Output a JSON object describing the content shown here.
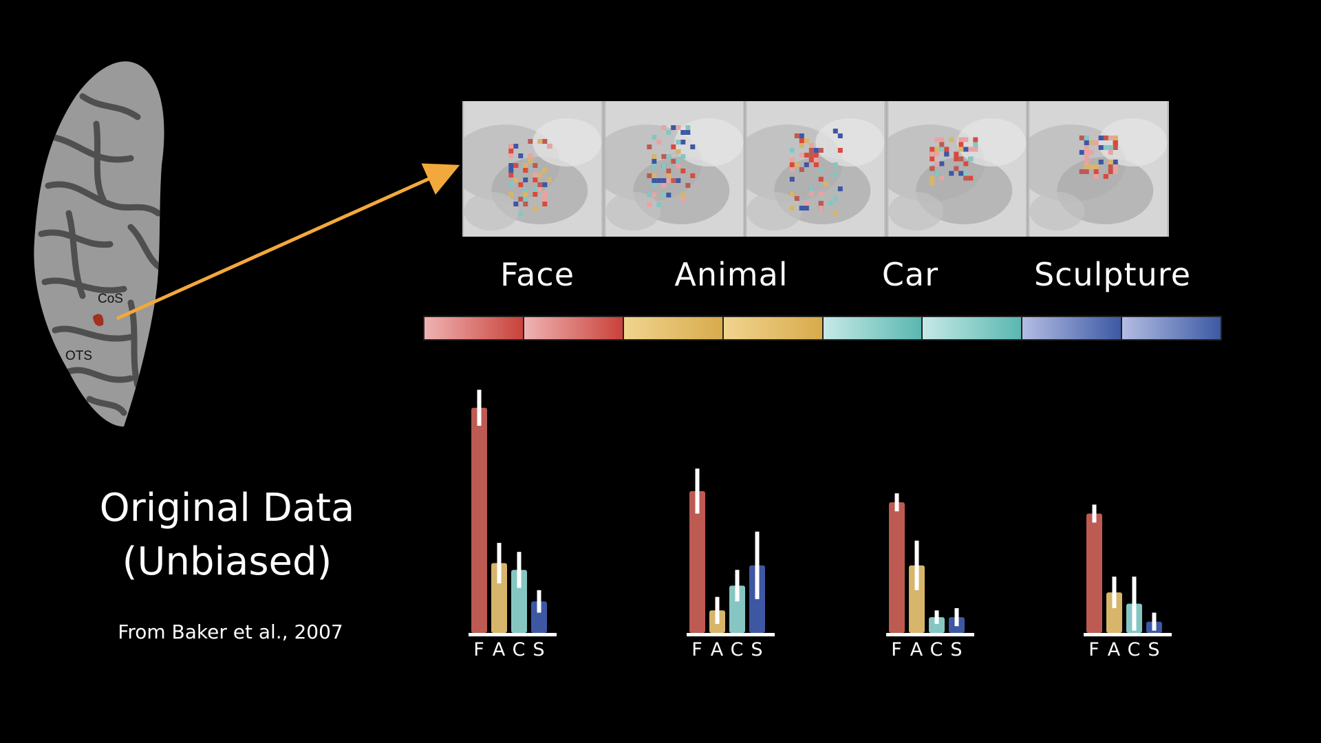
{
  "title": {
    "line1": "Original Data",
    "line2": "(Unbiased)"
  },
  "source": "From Baker et al., 2007",
  "brain": {
    "labels": {
      "cos": "CoS",
      "ots": "OTS"
    }
  },
  "categories": [
    "Face",
    "Animal",
    "Car",
    "Sculpture"
  ],
  "colors": {
    "face": "#bd5a52",
    "animal": "#d7b56b",
    "car": "#86c6c2",
    "sculpture": "#3e57a3",
    "arrow": "#f2a93b",
    "colorbar": [
      "#efb3b3",
      "#c9423a",
      "#f0d48e",
      "#d8ab4c",
      "#c5e9e6",
      "#5bb7b1",
      "#b3bde3",
      "#3d59a4"
    ]
  },
  "chart_data": {
    "type": "bar",
    "categories": [
      "F",
      "A",
      "C",
      "S"
    ],
    "groups": [
      {
        "values": [
          1.0,
          0.31,
          0.28,
          0.14
        ],
        "errors": [
          0.08,
          0.09,
          0.08,
          0.05
        ]
      },
      {
        "values": [
          0.63,
          0.1,
          0.21,
          0.3
        ],
        "errors": [
          0.1,
          0.06,
          0.07,
          0.15
        ]
      },
      {
        "values": [
          0.58,
          0.3,
          0.07,
          0.07
        ],
        "errors": [
          0.04,
          0.11,
          0.03,
          0.04
        ]
      },
      {
        "values": [
          0.53,
          0.18,
          0.13,
          0.05
        ],
        "errors": [
          0.04,
          0.07,
          0.12,
          0.04
        ]
      }
    ],
    "ylim": [
      0,
      1.1
    ],
    "xlabel": "",
    "ylabel": ""
  }
}
